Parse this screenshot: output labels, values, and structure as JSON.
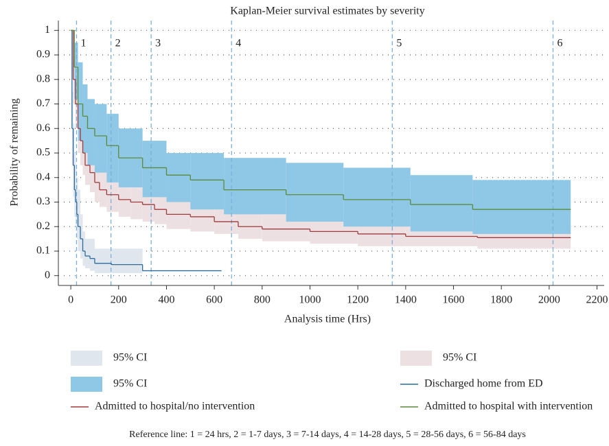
{
  "chart_data": {
    "type": "km",
    "title": "Kaplan-Meier survival estimates by severity",
    "xlabel": "Analysis time (Hrs)",
    "ylabel": "Probability of remaining",
    "note": "Reference line: 1 = 24 hrs, 2 = 1-7 days, 3 = 7-14 days, 4 = 14-28 days, 5 = 28-56 days, 6 = 56-84 days",
    "xlim": [
      -52,
      2230
    ],
    "ylim": [
      -0.04,
      1.04
    ],
    "xticks": [
      0,
      200,
      400,
      600,
      800,
      1000,
      1200,
      1400,
      1600,
      1800,
      2000,
      2200
    ],
    "yticks": [
      0,
      0.1,
      0.2,
      0.3,
      0.4,
      0.5,
      0.6,
      0.7,
      0.8,
      0.9,
      1
    ],
    "grid": true,
    "reference_lines": [
      {
        "value": 24,
        "label": "1"
      },
      {
        "value": 168,
        "label": "2"
      },
      {
        "value": 336,
        "label": "3"
      },
      {
        "value": 672,
        "label": "4"
      },
      {
        "value": 1344,
        "label": "5"
      },
      {
        "value": 2016,
        "label": "6"
      }
    ],
    "reference_color": "#7ab0d8",
    "series": [
      {
        "name": "Discharged home from ED",
        "color": "#2a6a9c",
        "ci_name": "95% CI",
        "ci_color": "#e0e6ee",
        "x": [
          0,
          5,
          10,
          15,
          20,
          25,
          30,
          40,
          50,
          60,
          80,
          100,
          170,
          300,
          630
        ],
        "values": [
          1,
          0.6,
          0.45,
          0.35,
          0.3,
          0.25,
          0.2,
          0.15,
          0.1,
          0.08,
          0.07,
          0.05,
          0.045,
          0.02,
          0.02
        ],
        "upper": [
          1,
          0.75,
          0.62,
          0.5,
          0.45,
          0.4,
          0.35,
          0.25,
          0.18,
          0.15,
          0.15,
          0.11,
          0.11,
          null,
          null
        ],
        "lower": [
          1,
          0.45,
          0.32,
          0.24,
          0.2,
          0.15,
          0.1,
          0.07,
          0.04,
          0.03,
          0.02,
          0.01,
          0.01,
          null,
          null
        ]
      },
      {
        "name": "Admitted to hospital/no intervention",
        "color": "#9e3a3a",
        "ci_name": "95% CI",
        "ci_color": "#ede0e3",
        "x": [
          0,
          10,
          20,
          30,
          40,
          50,
          60,
          80,
          100,
          120,
          150,
          200,
          250,
          300,
          350,
          400,
          500,
          600,
          700,
          800,
          1000,
          1200,
          1400,
          1700,
          2090
        ],
        "values": [
          1,
          0.8,
          0.7,
          0.6,
          0.55,
          0.5,
          0.45,
          0.42,
          0.38,
          0.35,
          0.33,
          0.31,
          0.3,
          0.29,
          0.27,
          0.25,
          0.24,
          0.22,
          0.2,
          0.19,
          0.18,
          0.17,
          0.16,
          0.155,
          0.155
        ],
        "upper": [
          1,
          0.88,
          0.8,
          0.72,
          0.66,
          0.62,
          0.56,
          0.52,
          0.48,
          0.45,
          0.42,
          0.39,
          0.37,
          0.35,
          0.34,
          0.32,
          0.3,
          0.28,
          0.26,
          0.25,
          0.24,
          0.23,
          0.22,
          0.21,
          0.21
        ],
        "lower": [
          1,
          0.7,
          0.6,
          0.5,
          0.45,
          0.41,
          0.37,
          0.34,
          0.3,
          0.28,
          0.26,
          0.24,
          0.23,
          0.22,
          0.21,
          0.19,
          0.18,
          0.17,
          0.15,
          0.14,
          0.13,
          0.12,
          0.12,
          0.11,
          0.11
        ]
      },
      {
        "name": "Admitted to hospital with intervention",
        "color": "#5a8a3a",
        "ci_name": "95% CI",
        "ci_color": "#8fc8e6",
        "x": [
          0,
          15,
          30,
          50,
          70,
          100,
          150,
          200,
          300,
          400,
          500,
          640,
          900,
          1140,
          1420,
          1680,
          2090
        ],
        "values": [
          1,
          0.85,
          0.7,
          0.65,
          0.6,
          0.57,
          0.53,
          0.48,
          0.44,
          0.41,
          0.39,
          0.35,
          0.33,
          0.31,
          0.29,
          0.27,
          0.27
        ],
        "upper": [
          1,
          0.95,
          0.87,
          0.78,
          0.72,
          0.7,
          0.66,
          0.6,
          0.55,
          0.5,
          0.5,
          0.48,
          0.46,
          0.44,
          0.41,
          0.39,
          0.39
        ],
        "lower": [
          1,
          0.72,
          0.55,
          0.5,
          0.45,
          0.42,
          0.38,
          0.36,
          0.32,
          0.3,
          0.27,
          0.25,
          0.22,
          0.2,
          0.18,
          0.17,
          0.17
        ]
      }
    ]
  }
}
